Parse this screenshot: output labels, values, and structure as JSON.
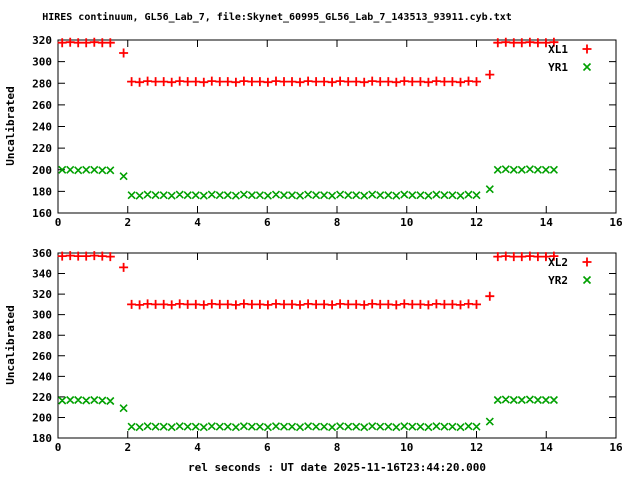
{
  "title": "HIRES continuum, GL56_Lab_7, file:Skynet_60995_GL56_Lab_7_143513_93911.cyb.txt",
  "xlabel": "rel seconds : UT date 2025-11-16T23:44:20.000",
  "background": "#ffffff",
  "axis_color": "#000000",
  "chart_data": [
    {
      "type": "scatter",
      "panel": "top",
      "ylabel": "Uncalibrated",
      "xlim": [
        0,
        16
      ],
      "ylim": [
        160,
        320
      ],
      "xticks": [
        0,
        2,
        4,
        6,
        8,
        10,
        12,
        14,
        16
      ],
      "yticks": [
        160,
        180,
        200,
        220,
        240,
        260,
        280,
        300,
        320
      ],
      "grid": false,
      "legend_position": "top-right-inside",
      "x": [
        0.12,
        0.35,
        0.58,
        0.81,
        1.04,
        1.27,
        1.5,
        1.88,
        2.11,
        2.34,
        2.57,
        2.8,
        3.03,
        3.26,
        3.49,
        3.72,
        3.95,
        4.18,
        4.41,
        4.64,
        4.87,
        5.1,
        5.33,
        5.56,
        5.79,
        6.02,
        6.25,
        6.48,
        6.71,
        6.94,
        7.17,
        7.4,
        7.63,
        7.86,
        8.09,
        8.32,
        8.55,
        8.78,
        9.01,
        9.24,
        9.47,
        9.7,
        9.93,
        10.16,
        10.39,
        10.62,
        10.85,
        11.08,
        11.31,
        11.54,
        11.77,
        12.0,
        12.38,
        12.61,
        12.84,
        13.07,
        13.3,
        13.53,
        13.76,
        13.99,
        14.22
      ],
      "series": [
        {
          "name": "XL1",
          "marker": "plus",
          "color": "#ff0000",
          "y": [
            317.5,
            318,
            317.5,
            317.5,
            318,
            317.5,
            317.5,
            308,
            281.5,
            281,
            282,
            281.5,
            281.5,
            281,
            282,
            281.5,
            281.5,
            281,
            282,
            281.5,
            281.5,
            281,
            282,
            281.5,
            281.5,
            281,
            282,
            281.5,
            281.5,
            281,
            282,
            281.5,
            281.5,
            281,
            282,
            281.5,
            281.5,
            281,
            282,
            281.5,
            281.5,
            281,
            282,
            281.5,
            281.5,
            281,
            282,
            281.5,
            281.5,
            281,
            282,
            281.5,
            288,
            317.5,
            318,
            317.5,
            317.5,
            318,
            317.5,
            317.5,
            318
          ]
        },
        {
          "name": "YR1",
          "marker": "cross",
          "color": "#00a000",
          "y": [
            200,
            200,
            199.5,
            200,
            200,
            199.5,
            199.5,
            194,
            176.5,
            176,
            177,
            176.5,
            176.5,
            176,
            177,
            176.5,
            176.5,
            176,
            177,
            176.5,
            176.5,
            176,
            177,
            176.5,
            176.5,
            176,
            177,
            176.5,
            176.5,
            176,
            177,
            176.5,
            176.5,
            176,
            177,
            176.5,
            176.5,
            176,
            177,
            176.5,
            176.5,
            176,
            177,
            176.5,
            176.5,
            176,
            177,
            176.5,
            176.5,
            176,
            177,
            176.5,
            182,
            200,
            200.5,
            200,
            200,
            200.5,
            200,
            200,
            200
          ]
        }
      ]
    },
    {
      "type": "scatter",
      "panel": "bottom",
      "ylabel": "Uncalibrated",
      "xlim": [
        0,
        16
      ],
      "ylim": [
        180,
        360
      ],
      "xticks": [
        0,
        2,
        4,
        6,
        8,
        10,
        12,
        14,
        16
      ],
      "yticks": [
        180,
        200,
        220,
        240,
        260,
        280,
        300,
        320,
        340,
        360
      ],
      "grid": false,
      "legend_position": "top-right-inside",
      "x": [
        0.12,
        0.35,
        0.58,
        0.81,
        1.04,
        1.27,
        1.5,
        1.88,
        2.11,
        2.34,
        2.57,
        2.8,
        3.03,
        3.26,
        3.49,
        3.72,
        3.95,
        4.18,
        4.41,
        4.64,
        4.87,
        5.1,
        5.33,
        5.56,
        5.79,
        6.02,
        6.25,
        6.48,
        6.71,
        6.94,
        7.17,
        7.4,
        7.63,
        7.86,
        8.09,
        8.32,
        8.55,
        8.78,
        9.01,
        9.24,
        9.47,
        9.7,
        9.93,
        10.16,
        10.39,
        10.62,
        10.85,
        11.08,
        11.31,
        11.54,
        11.77,
        12.0,
        12.38,
        12.61,
        12.84,
        13.07,
        13.3,
        13.53,
        13.76,
        13.99,
        14.22
      ],
      "series": [
        {
          "name": "XL2",
          "marker": "plus",
          "color": "#ff0000",
          "y": [
            357,
            357.5,
            357,
            357,
            357.5,
            357,
            356.5,
            346,
            310,
            309.5,
            310.5,
            310,
            310,
            309.5,
            310.5,
            310,
            310,
            309.5,
            310.5,
            310,
            310,
            309.5,
            310.5,
            310,
            310,
            309.5,
            310.5,
            310,
            310,
            309.5,
            310.5,
            310,
            310,
            309.5,
            310.5,
            310,
            310,
            309.5,
            310.5,
            310,
            310,
            309.5,
            310.5,
            310,
            310,
            309.5,
            310.5,
            310,
            310,
            309.5,
            310.5,
            310,
            318,
            356.5,
            357,
            356.5,
            356.5,
            357,
            356.5,
            356.5,
            357
          ]
        },
        {
          "name": "YR2",
          "marker": "cross",
          "color": "#00a000",
          "y": [
            216.5,
            217,
            217,
            216.5,
            217,
            216.5,
            216,
            209,
            191,
            190.5,
            191.5,
            191,
            191,
            190.5,
            191.5,
            191,
            191,
            190.5,
            191.5,
            191,
            191,
            190.5,
            191.5,
            191,
            191,
            190.5,
            191.5,
            191,
            191,
            190.5,
            191.5,
            191,
            191,
            190.5,
            191.5,
            191,
            191,
            190.5,
            191.5,
            191,
            191,
            190.5,
            191.5,
            191,
            191,
            190.5,
            191.5,
            191,
            191,
            190.5,
            191.5,
            191,
            196,
            217,
            217.5,
            217,
            217,
            217.5,
            217,
            217,
            217
          ]
        }
      ]
    }
  ]
}
